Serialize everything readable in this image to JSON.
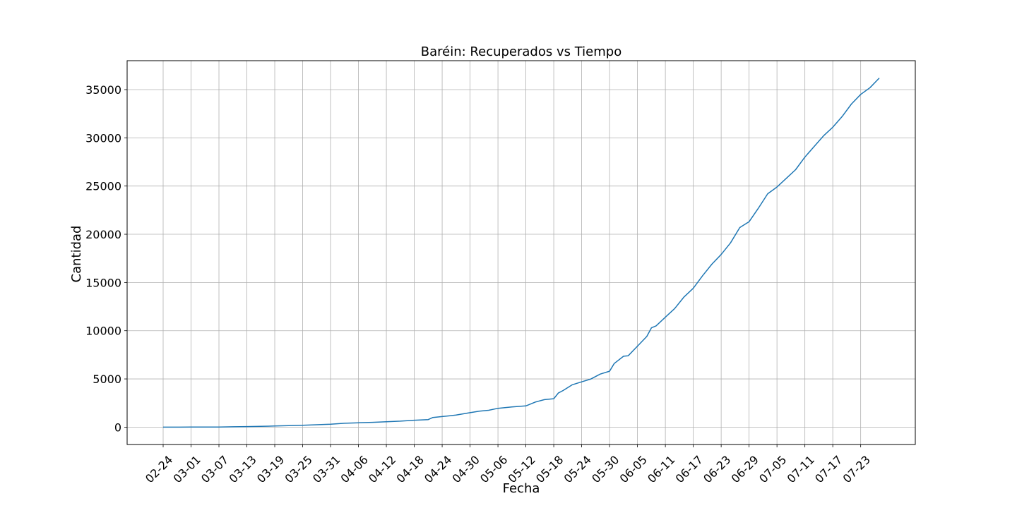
{
  "chart_data": {
    "type": "line",
    "title": "Baréin: Recuperados vs Tiempo",
    "xlabel": "Fecha",
    "ylabel": "Cantidad",
    "grid": true,
    "legend": "none",
    "ylim": [
      -1800,
      38000
    ],
    "yticks": [
      0,
      5000,
      10000,
      15000,
      20000,
      25000,
      30000,
      35000
    ],
    "xticks": [
      "02-24",
      "03-01",
      "03-07",
      "03-13",
      "03-19",
      "03-25",
      "03-31",
      "04-06",
      "04-12",
      "04-18",
      "04-24",
      "04-30",
      "05-06",
      "05-12",
      "05-18",
      "05-24",
      "05-30",
      "06-05",
      "06-11",
      "06-17",
      "06-23",
      "06-29",
      "07-05",
      "07-11",
      "07-17",
      "07-23"
    ],
    "series": [
      {
        "color": "#1f77b4",
        "x": [
          "02-24",
          "03-01",
          "03-07",
          "03-10",
          "03-13",
          "03-16",
          "03-19",
          "03-22",
          "03-25",
          "03-28",
          "03-31",
          "04-03",
          "04-06",
          "04-09",
          "04-12",
          "04-15",
          "04-18",
          "04-21",
          "04-22",
          "04-24",
          "04-27",
          "04-30",
          "05-02",
          "05-04",
          "05-06",
          "05-09",
          "05-12",
          "05-14",
          "05-16",
          "05-18",
          "05-19",
          "05-20",
          "05-22",
          "05-24",
          "05-26",
          "05-28",
          "05-30",
          "05-31",
          "06-02",
          "06-03",
          "06-05",
          "06-07",
          "06-08",
          "06-09",
          "06-11",
          "06-13",
          "06-15",
          "06-17",
          "06-19",
          "06-21",
          "06-23",
          "06-25",
          "06-27",
          "06-29",
          "07-01",
          "07-03",
          "07-05",
          "07-07",
          "07-09",
          "07-11",
          "07-13",
          "07-15",
          "07-17",
          "07-19",
          "07-21",
          "07-23",
          "07-25",
          "07-27"
        ],
        "y": [
          0,
          10,
          15,
          40,
          60,
          90,
          120,
          150,
          190,
          250,
          300,
          400,
          450,
          500,
          560,
          620,
          720,
          780,
          1000,
          1100,
          1250,
          1500,
          1650,
          1750,
          1950,
          2100,
          2200,
          2600,
          2850,
          2950,
          3550,
          3800,
          4400,
          4700,
          5000,
          5500,
          5800,
          6600,
          7350,
          7400,
          8400,
          9400,
          10300,
          10500,
          11400,
          12300,
          13500,
          14400,
          15700,
          16900,
          17900,
          19100,
          20700,
          21300,
          22700,
          24200,
          24900,
          25800,
          26700,
          28000,
          29100,
          30200,
          31100,
          32200,
          33500,
          34500,
          35200,
          36200
        ]
      }
    ]
  }
}
